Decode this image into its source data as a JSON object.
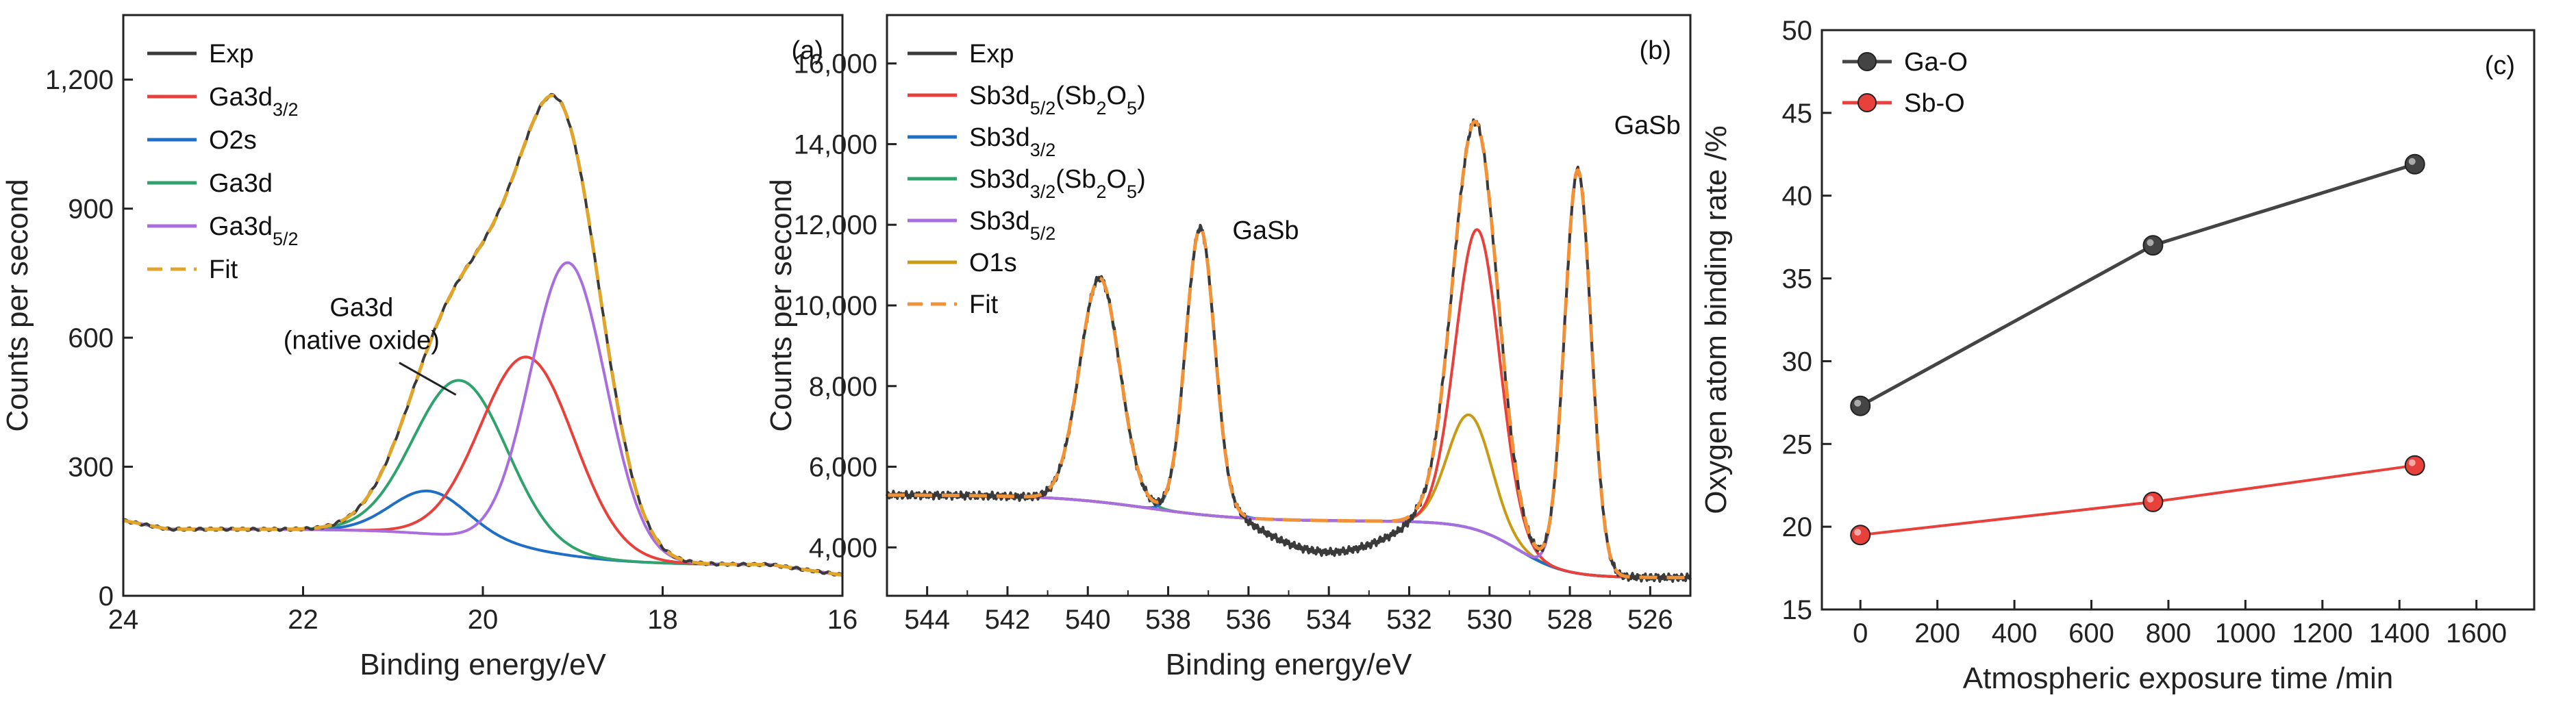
{
  "chart_data": [
    {
      "id": "a",
      "type": "line",
      "panel_label": "(a)",
      "xlabel": "Binding energy/eV",
      "ylabel": "Counts per second",
      "xlim": [
        24,
        16
      ],
      "ylim": [
        0,
        1350
      ],
      "xticks": [
        24,
        22,
        20,
        18,
        16
      ],
      "yticks": [
        0,
        300,
        600,
        900,
        1200
      ],
      "ytick_labels": [
        "0",
        "300",
        "600",
        "900",
        "1,200"
      ],
      "legend_position": "top-left",
      "series": [
        {
          "name": "Exp",
          "color": "#3a3a3a",
          "dash": false,
          "kind": "shape",
          "bg": 150,
          "bg_slope": 2,
          "peaks": [
            [
              20.6,
              100,
              0.42
            ],
            [
              20.25,
              365,
              0.52
            ],
            [
              19.5,
              445,
              0.52
            ],
            [
              19.05,
              680,
              0.42
            ]
          ],
          "noise": 3,
          "segments": [
            {
              "label_main": "Exp"
            }
          ]
        },
        {
          "name": "Ga3d",
          "sub": "3/2",
          "color": "#e8413c",
          "dash": false,
          "kind": "shape",
          "bg": 150,
          "bg_slope": 2,
          "peaks": [
            [
              19.5,
              445,
              0.52
            ]
          ]
        },
        {
          "name": "O2s",
          "color": "#1f6fc6",
          "dash": false,
          "kind": "shape",
          "bg": 150,
          "bg_slope": 2,
          "peaks": [
            [
              20.6,
              100,
              0.42
            ]
          ]
        },
        {
          "name": "Ga3d",
          "color": "#2fa36b",
          "dash": false,
          "kind": "shape",
          "bg": 150,
          "bg_slope": 2,
          "peaks": [
            [
              20.25,
              365,
              0.52
            ]
          ]
        },
        {
          "name": "Ga3d",
          "sub": "5/2",
          "color": "#a86ee0",
          "dash": false,
          "kind": "shape",
          "bg": 150,
          "bg_slope": 2,
          "peaks": [
            [
              19.05,
              680,
              0.42
            ]
          ]
        },
        {
          "name": "Fit",
          "color": "#e0a52a",
          "dash": true,
          "kind": "shape",
          "bg": 150,
          "bg_slope": 2,
          "peaks": [
            [
              20.6,
              100,
              0.42
            ],
            [
              20.25,
              365,
              0.52
            ],
            [
              19.5,
              445,
              0.52
            ],
            [
              19.05,
              680,
              0.42
            ]
          ]
        }
      ],
      "annotations": [
        {
          "lines": [
            "Ga3d",
            "(native oxide)"
          ],
          "points_to": [
            20.3,
            515
          ]
        }
      ]
    },
    {
      "id": "b",
      "type": "line",
      "panel_label": "(b)",
      "xlabel": "Binding energy/eV",
      "ylabel": "Counts per second",
      "xlim": [
        545,
        525
      ],
      "ylim": [
        2800,
        17200
      ],
      "xticks": [
        544,
        542,
        540,
        538,
        536,
        534,
        532,
        530,
        528,
        526
      ],
      "yticks": [
        4000,
        6000,
        8000,
        10000,
        12000,
        14000,
        16000
      ],
      "ytick_labels": [
        "4,000",
        "6,000",
        "8,000",
        "10,000",
        "12,000",
        "14,000",
        "16,000"
      ],
      "legend_position": "top-left",
      "series": [
        {
          "name": "Exp",
          "color": "#3a3a3a",
          "dash": false
        },
        {
          "name": "Sb3d",
          "sub": "5/2",
          "tail": "(Sb",
          "tail_sub": "2",
          "tail2": "O",
          "tail2_sub": "5",
          "tail3": ")",
          "color": "#e8413c",
          "dash": false,
          "peaks": [
            [
              530.3,
              7450,
              0.55
            ]
          ]
        },
        {
          "name": "Sb3d",
          "sub": "3/2",
          "color": "#1f6fc6",
          "dash": false,
          "peaks": [
            [
              537.2,
              7100,
              0.36
            ]
          ]
        },
        {
          "name": "Sb3d",
          "sub": "3/2",
          "tail": "(Sb",
          "tail_sub": "2",
          "tail2": "O",
          "tail2_sub": "5",
          "tail3": ")",
          "color": "#2fa36b",
          "dash": false,
          "peaks": [
            [
              539.7,
              5550,
              0.5
            ]
          ]
        },
        {
          "name": "Sb3d",
          "sub": "5/2",
          "color": "#a86ee0",
          "dash": false,
          "peaks": [
            [
              527.8,
              10000,
              0.33
            ]
          ]
        },
        {
          "name": "O1s",
          "color": "#c99a14",
          "dash": false,
          "peaks": [
            [
              530.5,
              2800,
              0.55
            ]
          ]
        },
        {
          "name": "Fit",
          "color": "#f29238",
          "dash": true
        }
      ],
      "annotations": [
        {
          "text": "GaSb",
          "at": [
            536.4,
            11650
          ]
        },
        {
          "text": "GaSb",
          "at": [
            526.9,
            14250
          ]
        }
      ]
    },
    {
      "id": "c",
      "type": "line",
      "panel_label": "(c)",
      "xlabel": "Atmospheric exposure time /min",
      "ylabel": "Oxygen atom binding rate /%",
      "xlim": [
        -100,
        1750
      ],
      "ylim": [
        15,
        50
      ],
      "xticks": [
        0,
        200,
        400,
        600,
        800,
        1000,
        1200,
        1400,
        1600
      ],
      "yticks": [
        15,
        20,
        25,
        30,
        35,
        40,
        45,
        50
      ],
      "legend_position": "top-left",
      "series": [
        {
          "name": "Ga-O",
          "color": "#444444",
          "marker": "sphere-dark",
          "x": [
            0,
            760,
            1440
          ],
          "values": [
            27.3,
            37.0,
            41.9
          ]
        },
        {
          "name": "Sb-O",
          "color": "#e8413c",
          "marker": "sphere-red",
          "x": [
            0,
            760,
            1440
          ],
          "values": [
            19.5,
            21.5,
            23.7
          ]
        }
      ]
    }
  ]
}
